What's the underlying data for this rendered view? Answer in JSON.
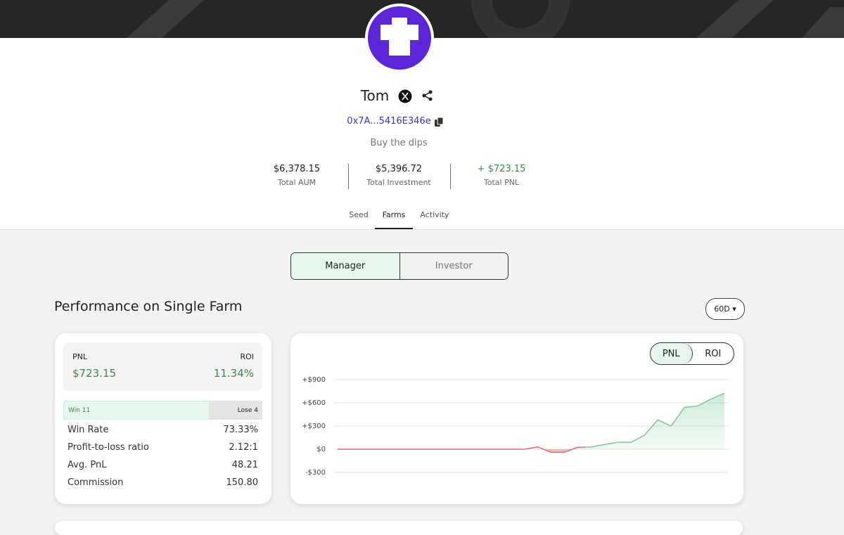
{
  "profile": {
    "name": "Tom",
    "address": "0x7A...5416E346e",
    "bio": "Buy the dips"
  },
  "stats": [
    {
      "value": "$6,378.15",
      "label": "Total AUM"
    },
    {
      "value": "$5,396.72",
      "label": "Total Investment"
    },
    {
      "value": "+ $723.15",
      "label": "Total PNL"
    }
  ],
  "tabs": [
    "Seed",
    "Farms",
    "Activity"
  ],
  "role_toggle": [
    "Manager",
    "Investor"
  ],
  "section": {
    "title": "Performance on Single Farm",
    "period": "60D"
  },
  "summary": {
    "pnl_label": "PNL",
    "pnl": "$723.15",
    "roi_label": "ROI",
    "roi": "11.34%",
    "win": {
      "label": "Win",
      "count": 11
    },
    "lose": {
      "label": "Lose",
      "count": 4
    },
    "rows": [
      {
        "label": "Win Rate",
        "value": "73.33%"
      },
      {
        "label": "Profit-to-loss ratio",
        "value": "2.12:1"
      },
      {
        "label": "Avg. PnL",
        "value": "48.21"
      },
      {
        "label": "Commission",
        "value": "150.80"
      }
    ]
  },
  "chart_toggle": [
    "PNL",
    "ROI"
  ],
  "chart_data": {
    "type": "area",
    "color": "#7fc79a",
    "negative_color": "#e46a6a",
    "values": [
      0,
      0,
      0,
      0,
      0,
      0,
      0,
      0,
      0,
      0,
      0,
      0,
      0,
      0,
      0,
      30,
      -40,
      -40,
      25,
      30,
      60,
      90,
      90,
      180,
      380,
      300,
      540,
      560,
      650,
      723.15
    ],
    "ylim": [
      -300,
      900
    ],
    "yticks": [
      {
        "value": 900,
        "label": "+$900"
      },
      {
        "value": 600,
        "label": "+$600"
      },
      {
        "value": 300,
        "label": "+$300"
      },
      {
        "value": 0,
        "label": "$0"
      },
      {
        "value": -300,
        "label": "-$300"
      }
    ],
    "grid": true
  }
}
